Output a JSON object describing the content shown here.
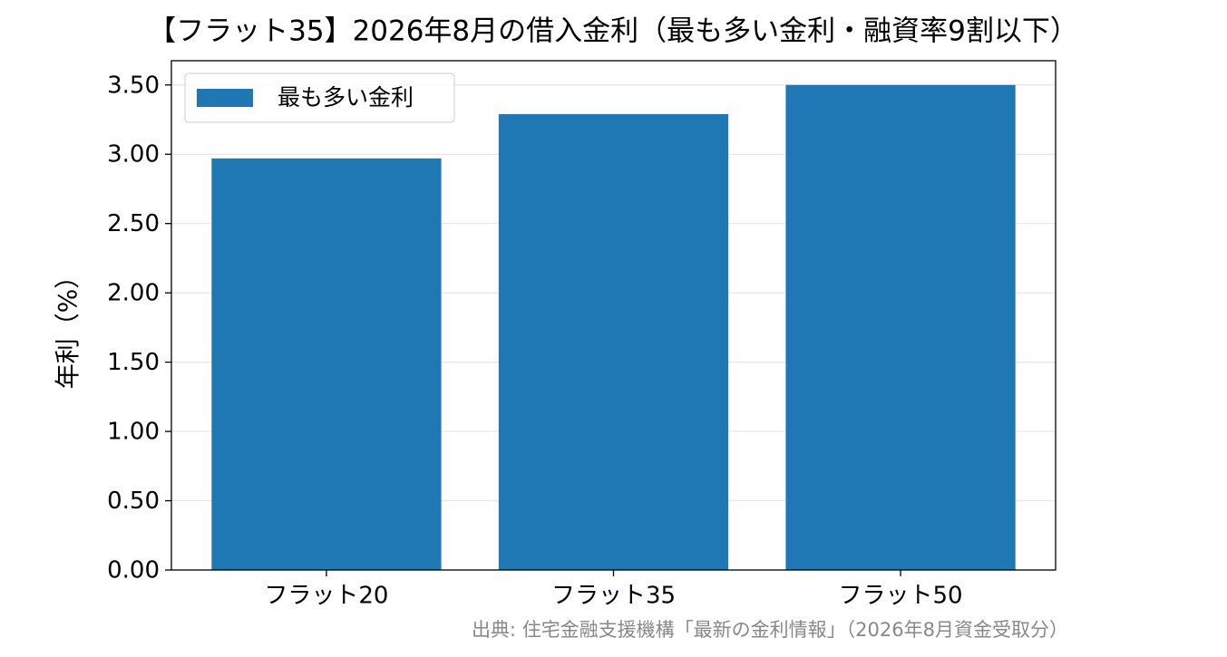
{
  "chart_data": {
    "type": "bar",
    "title": "【フラット35】2026年8月の借入金利（最も多い金利・融資率9割以下）",
    "ylabel": "年利（%）",
    "source": "出典: 住宅金融支援機構「最新の金利情報」（2026年8月資金受取分）",
    "categories": [
      "フラット20",
      "フラット35",
      "フラット50"
    ],
    "series": [
      {
        "name": "最も多い金利",
        "color": "#1f77b4",
        "values": [
          2.97,
          3.29,
          3.5
        ]
      }
    ],
    "ylim": [
      0,
      3.675
    ],
    "yticks": [
      {
        "value": 0,
        "label": "0.00"
      },
      {
        "value": 0.5,
        "label": "0.50"
      },
      {
        "value": 1,
        "label": "1.00"
      },
      {
        "value": 1.5,
        "label": "1.50"
      },
      {
        "value": 2,
        "label": "2.00"
      },
      {
        "value": 2.5,
        "label": "2.50"
      },
      {
        "value": 3,
        "label": "3.00"
      },
      {
        "value": 3.5,
        "label": "3.50"
      }
    ],
    "grid": true,
    "legend": "upper left"
  }
}
